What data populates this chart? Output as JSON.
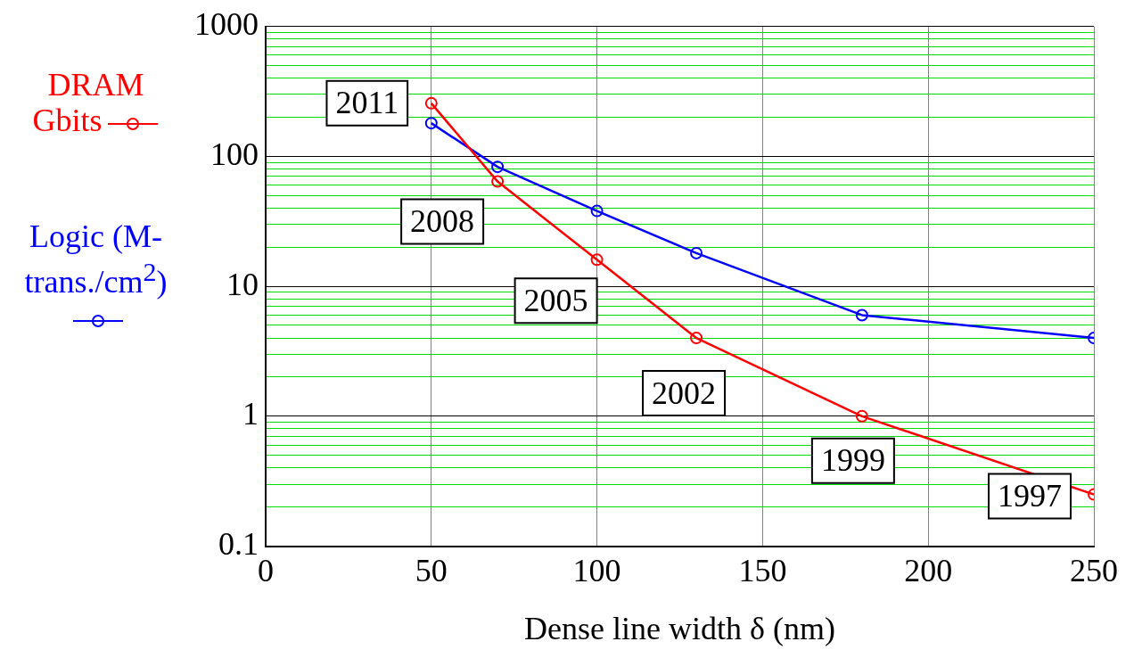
{
  "chart_data": {
    "type": "line",
    "xlabel": "Dense line width δ (nm)",
    "series": [
      {
        "name": "DRAM Gbits",
        "color": "#ff0000",
        "x": [
          50,
          70,
          100,
          130,
          180,
          250
        ],
        "values": [
          256,
          64,
          16,
          4,
          1,
          0.25
        ]
      },
      {
        "name": "Logic (M-trans./cm$^{2}$)",
        "color": "#0000ff",
        "x": [
          50,
          70,
          100,
          130,
          180,
          250
        ],
        "values": [
          180,
          83,
          38,
          18,
          6,
          4
        ]
      }
    ],
    "xlim": [
      0,
      250
    ],
    "xticks": [
      0,
      50,
      100,
      150,
      200,
      250
    ],
    "ylim": [
      0.1,
      1000
    ],
    "yticks": [
      {
        "value": 0.1,
        "label": "0.1"
      },
      {
        "value": 0.2,
        "label": null
      },
      {
        "value": 0.3,
        "label": null
      },
      {
        "value": 0.4,
        "label": null
      },
      {
        "value": 0.5,
        "label": null
      },
      {
        "value": 0.6,
        "label": null
      },
      {
        "value": 0.7,
        "label": null
      },
      {
        "value": 0.8,
        "label": null
      },
      {
        "value": 0.9,
        "label": null
      },
      1,
      {
        "value": 2,
        "label": null
      },
      {
        "value": 3,
        "label": null
      },
      {
        "value": 4,
        "label": null
      },
      {
        "value": 5,
        "label": null
      },
      {
        "value": 6,
        "label": null
      },
      {
        "value": 7,
        "label": null
      },
      {
        "value": 8,
        "label": null
      },
      {
        "value": 9,
        "label": null
      },
      10,
      {
        "value": 20,
        "label": null
      },
      {
        "value": 30,
        "label": null
      },
      {
        "value": 40,
        "label": null
      },
      {
        "value": 50,
        "label": null
      },
      {
        "value": 60,
        "label": null
      },
      {
        "value": 70,
        "label": null
      },
      {
        "value": 80,
        "label": null
      },
      {
        "value": 90,
        "label": null
      },
      100,
      {
        "value": 200,
        "label": null
      },
      {
        "value": 300,
        "label": null
      },
      {
        "value": 400,
        "label": null
      },
      {
        "value": 500,
        "label": null
      },
      {
        "value": 600,
        "label": null
      },
      {
        "value": 700,
        "label": null
      },
      {
        "value": 800,
        "label": null
      },
      {
        "value": 900,
        "label": null
      },
      1000
    ],
    "log": "y",
    "grid": true,
    "legend": "left",
    "marker": "circle",
    "line_style": "solid",
    "annotations": [
      {
        "text": "2011",
        "x": 50,
        "y": 256
      },
      {
        "text": "2008",
        "x": 70,
        "y": 64
      },
      {
        "text": "2005",
        "x": 100,
        "y": 16
      },
      {
        "text": "2002",
        "x": 130,
        "y": 4
      },
      {
        "text": "1999",
        "x": 180,
        "y": 1
      },
      {
        "text": "1997",
        "x": 250,
        "y": 0.25
      }
    ]
  }
}
